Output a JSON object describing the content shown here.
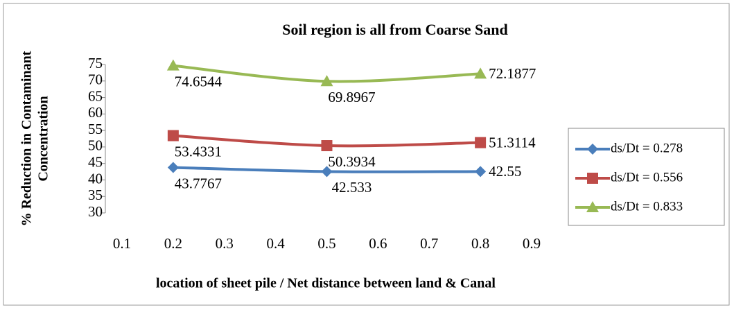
{
  "chart_data": {
    "type": "line",
    "title": "Soil region is all from Coarse Sand",
    "x_label": "location of sheet pile / Net distance between land & Canal",
    "y_label": [
      "% Reduction in Contaminant",
      "Concentration"
    ],
    "x": [
      0.2,
      0.5,
      0.8
    ],
    "series": [
      {
        "name": "ds/Dt = 0.278",
        "color": "#4a7ebb",
        "marker": "diamond",
        "values": [
          43.7767,
          42.533,
          42.55
        ]
      },
      {
        "name": "ds/Dt = 0.556",
        "color": "#be4b48",
        "marker": "square",
        "values": [
          53.4331,
          50.3934,
          51.3114
        ]
      },
      {
        "name": "ds/Dt = 0.833",
        "color": "#98b954",
        "marker": "triangle",
        "values": [
          74.6544,
          69.8967,
          72.1877
        ]
      }
    ],
    "xlim": [
      0.1,
      0.9
    ],
    "xticks": [
      0.1,
      0.2,
      0.3,
      0.4,
      0.5,
      0.6,
      0.7,
      0.8,
      0.9
    ],
    "ylim": [
      30,
      75
    ],
    "yticks": [
      30,
      35,
      40,
      45,
      50,
      55,
      60,
      65,
      70,
      75
    ],
    "legend": "right"
  }
}
